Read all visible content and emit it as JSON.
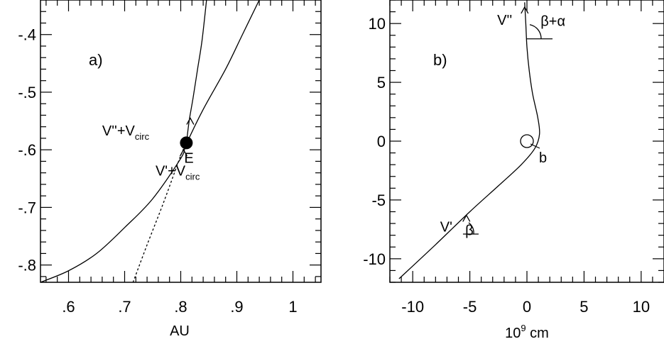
{
  "chart_data": [
    {
      "type": "line",
      "panel_label": "a)",
      "xlabel": "AU",
      "ylabel": "",
      "xlim": [
        0.55,
        1.05
      ],
      "ylim": [
        -0.83,
        -0.34
      ],
      "x_ticks": [
        0.6,
        0.7,
        0.8,
        0.9,
        1.0
      ],
      "x_tick_labels": [
        ".6",
        ".7",
        ".8",
        ".9",
        "1"
      ],
      "y_ticks": [
        -0.4,
        -0.5,
        -0.6,
        -0.7,
        -0.8
      ],
      "y_tick_labels": [
        "-.4",
        "-.5",
        "-.6",
        "-.7",
        "-.8"
      ],
      "series": [
        {
          "style": "solid",
          "points": [
            [
              0.55,
              -0.83
            ],
            [
              0.6,
              -0.81
            ],
            [
              0.65,
              -0.78
            ],
            [
              0.7,
              -0.735
            ],
            [
              0.75,
              -0.685
            ],
            [
              0.8,
              -0.615
            ],
            [
              0.81,
              -0.59
            ],
            [
              0.84,
              -0.53
            ],
            [
              0.88,
              -0.46
            ],
            [
              0.91,
              -0.4
            ],
            [
              0.94,
              -0.34
            ]
          ]
        },
        {
          "style": "solid",
          "points": [
            [
              0.81,
              -0.59
            ],
            [
              0.815,
              -0.55
            ],
            [
              0.822,
              -0.51
            ],
            [
              0.83,
              -0.46
            ],
            [
              0.838,
              -0.41
            ],
            [
              0.846,
              -0.34
            ]
          ]
        },
        {
          "style": "dotted",
          "points": [
            [
              0.715,
              -0.83
            ],
            [
              0.74,
              -0.765
            ],
            [
              0.77,
              -0.69
            ],
            [
              0.8,
              -0.61
            ],
            [
              0.81,
              -0.59
            ]
          ]
        }
      ],
      "marker": {
        "x": 0.81,
        "y": -0.588,
        "label": "E"
      },
      "arrows": [
        {
          "x": 0.817,
          "y": -0.545
        },
        {
          "x": 0.805,
          "y": -0.6
        }
      ],
      "annotations": [
        {
          "main": "V''+V",
          "sub": "circ",
          "x": 0.66,
          "y": -0.575
        },
        {
          "main": "V'+V",
          "sub": "circ",
          "x": 0.755,
          "y": -0.645
        }
      ]
    },
    {
      "type": "line",
      "panel_label": "b)",
      "xlabel": "10^9 cm",
      "xlabel_base": "10",
      "xlabel_sup": "9",
      "xlabel_unit": " cm",
      "ylabel": "",
      "xlim": [
        -12,
        12
      ],
      "ylim": [
        -12,
        12
      ],
      "x_ticks": [
        -10,
        -5,
        0,
        5,
        10
      ],
      "x_tick_labels": [
        "-10",
        "-5",
        "0",
        "5",
        "10"
      ],
      "y_ticks": [
        10,
        5,
        0,
        -5,
        -10
      ],
      "y_tick_labels": [
        "10",
        "5",
        "0",
        "-5",
        "-10"
      ],
      "series": [
        {
          "style": "solid",
          "points": [
            [
              -11.2,
              -11.7
            ],
            [
              -8.0,
              -8.8
            ],
            [
              -5.0,
              -6.0
            ],
            [
              -2.5,
              -3.8
            ],
            [
              -0.5,
              -2.0
            ],
            [
              0.7,
              -0.6
            ],
            [
              1.1,
              0.6
            ],
            [
              0.95,
              2.0
            ],
            [
              0.5,
              4.0
            ],
            [
              0.2,
              6.0
            ],
            [
              0.0,
              8.0
            ],
            [
              -0.1,
              10.0
            ],
            [
              -0.2,
              11.8
            ]
          ]
        }
      ],
      "circle": {
        "x": 0.0,
        "y": 0.0,
        "label": "b"
      },
      "arrows": [
        {
          "x": -5.3,
          "y": -6.3
        },
        {
          "x": -0.2,
          "y": 11.4
        }
      ],
      "annotations": [
        {
          "main": "V'",
          "x": -7.6,
          "y": -7.7
        },
        {
          "main": "β",
          "x": -5.4,
          "y": -8.0
        },
        {
          "main": "V''",
          "x": -2.6,
          "y": 9.9
        },
        {
          "main": "β+α",
          "x": 1.2,
          "y": 9.8
        }
      ]
    }
  ]
}
